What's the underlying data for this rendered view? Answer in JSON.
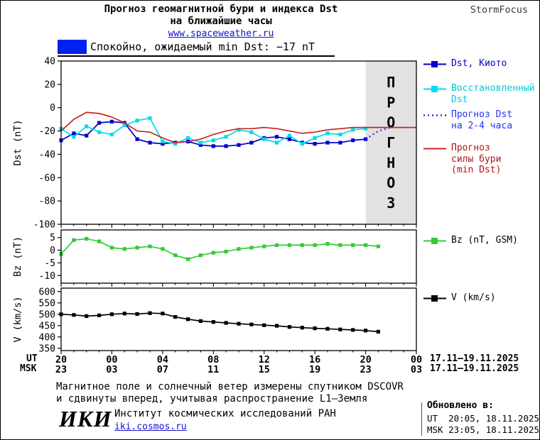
{
  "header": {
    "title_line1": "Прогноз геомагнитной бури и индекса Dst",
    "title_line2": "на ближайшие часы",
    "site_link": "www.spaceweather.ru",
    "brand": "StormFocus"
  },
  "status": {
    "text": "Спокойно, ожидаемый min Dst: −17 nT",
    "swatch_color": "#0022ee"
  },
  "xaxis": {
    "ut_label": "UT",
    "msk_label": "MSK",
    "tick_hours": [
      0,
      4,
      8,
      12,
      16,
      20,
      24,
      28
    ],
    "ut_ticks": [
      "20",
      "00",
      "04",
      "08",
      "12",
      "16",
      "20",
      "00"
    ],
    "msk_ticks": [
      "23",
      "03",
      "07",
      "11",
      "15",
      "19",
      "23",
      "03"
    ],
    "ut_date_range": "17.11–19.11.2025",
    "msk_date_range": "17.11–19.11.2025"
  },
  "chart_data": [
    {
      "type": "line",
      "ylabel": "Dst (nT)",
      "ylim": [
        -100,
        40
      ],
      "yticks": [
        40,
        20,
        0,
        -20,
        -40,
        -60,
        -80,
        -100
      ],
      "xlim": [
        0,
        28
      ],
      "grid": false,
      "legend_position": "right",
      "forecast_region": [
        24,
        28
      ],
      "forecast_label": "ПРОГНОЗ",
      "series": [
        {
          "name": "Dst, Киото",
          "legend_label": "Dst, Киото",
          "color": "#0000cd",
          "text_color": "#0000cd",
          "marker": "square",
          "x": [
            0,
            1,
            2,
            3,
            4,
            5,
            6,
            7,
            8,
            9,
            10,
            11,
            12,
            13,
            14,
            15,
            16,
            17,
            18,
            19,
            20,
            21,
            22,
            23,
            24
          ],
          "y": [
            -28,
            -22,
            -24,
            -13,
            -12,
            -13,
            -27,
            -30,
            -31,
            -30,
            -29,
            -32,
            -33,
            -33,
            -32,
            -30,
            -26,
            -25,
            -27,
            -30,
            -31,
            -30,
            -30,
            -28,
            -27
          ]
        },
        {
          "name": "Восстановленный Dst",
          "legend_label": "Восстановленный\nDst",
          "color": "#00dce8",
          "text_color": "#00c8d4",
          "marker": "square",
          "x": [
            0,
            1,
            2,
            3,
            4,
            5,
            6,
            7,
            8,
            9,
            10,
            11,
            12,
            13,
            14,
            15,
            16,
            17,
            18,
            19,
            20,
            21,
            22,
            23,
            24
          ],
          "y": [
            -18,
            -25,
            -16,
            -21,
            -23,
            -15,
            -11,
            -9,
            -29,
            -31,
            -26,
            -30,
            -28,
            -25,
            -19,
            -21,
            -27,
            -30,
            -24,
            -31,
            -26,
            -22,
            -23,
            -19,
            -18
          ]
        },
        {
          "name": "Прогноз Dst на 2-4 часа",
          "legend_label": "Прогноз Dst\nна 2-4 часа",
          "color": "#2233ee",
          "text_color": "#2233ee",
          "dash": "2,4",
          "line_width": 2.2,
          "x": [
            24,
            25,
            26
          ],
          "y": [
            -27,
            -20,
            -17
          ]
        },
        {
          "name": "Прогноз силы бури (min Dst)",
          "legend_label": "Прогноз\nсилы бури\n(min Dst)",
          "color": "#cc2222",
          "text_color": "#bb1111",
          "x": [
            0,
            1,
            2,
            3,
            4,
            5,
            6,
            7,
            8,
            9,
            10,
            11,
            12,
            13,
            14,
            15,
            16,
            17,
            18,
            19,
            20,
            21,
            22,
            23,
            24,
            25,
            26,
            27,
            28
          ],
          "y": [
            -20,
            -10,
            -4,
            -5,
            -8,
            -13,
            -20,
            -21,
            -26,
            -30,
            -29,
            -27,
            -23,
            -20,
            -18,
            -18,
            -17,
            -18,
            -20,
            -22,
            -21,
            -19,
            -18,
            -17,
            -17,
            -17,
            -17,
            -17,
            -17
          ]
        }
      ]
    },
    {
      "type": "line",
      "ylabel": "Bz (nT)",
      "ylim": [
        -13,
        8
      ],
      "yticks": [
        5,
        0,
        -5,
        -10
      ],
      "xlim": [
        0,
        28
      ],
      "grid": false,
      "series": [
        {
          "name": "Bz (nT, GSM)",
          "legend_label": "Bz (nT, GSM)",
          "color": "#33cc33",
          "text_color": "#000000",
          "marker": "square",
          "x": [
            0,
            1,
            2,
            3,
            4,
            5,
            6,
            7,
            8,
            9,
            10,
            11,
            12,
            13,
            14,
            15,
            16,
            17,
            18,
            19,
            20,
            21,
            22,
            23,
            24,
            25
          ],
          "y": [
            -1.5,
            4,
            4.5,
            3.5,
            1,
            0.5,
            1,
            1.5,
            0.5,
            -2,
            -3.5,
            -2,
            -1,
            -0.5,
            0.5,
            1,
            1.5,
            2,
            2,
            2,
            2,
            2.5,
            2,
            2,
            2,
            1.5
          ]
        }
      ]
    },
    {
      "type": "line",
      "ylabel": "V (km/s)",
      "ylim": [
        340,
        615
      ],
      "yticks": [
        600,
        550,
        500,
        450,
        400,
        350
      ],
      "xlim": [
        0,
        28
      ],
      "grid": false,
      "series": [
        {
          "name": "V (km/s)",
          "legend_label": "V (km/s)",
          "color": "#000000",
          "text_color": "#000000",
          "marker": "square",
          "x": [
            0,
            1,
            2,
            3,
            4,
            5,
            6,
            7,
            8,
            9,
            10,
            11,
            12,
            13,
            14,
            15,
            16,
            17,
            18,
            19,
            20,
            21,
            22,
            23,
            24,
            25
          ],
          "y": [
            500,
            497,
            492,
            495,
            500,
            503,
            501,
            505,
            503,
            488,
            478,
            470,
            466,
            462,
            458,
            455,
            452,
            449,
            444,
            441,
            438,
            436,
            433,
            431,
            428,
            423
          ]
        }
      ]
    }
  ],
  "footer": {
    "note_line1": "Магнитное поле и солнечный ветер измерены спутником DSCOVR",
    "note_line2": "и сдвинуты вперед, учитывая распространение L1–Земля",
    "logo_text": "ИКИ",
    "institute": "Институт космических исследований РАН",
    "institute_link": "iki.cosmos.ru",
    "updated_label": "Обновлено в:",
    "updated_ut": "UT  20:05, 18.11.2025",
    "updated_msk": "MSK 23:05, 18.11.2025"
  }
}
